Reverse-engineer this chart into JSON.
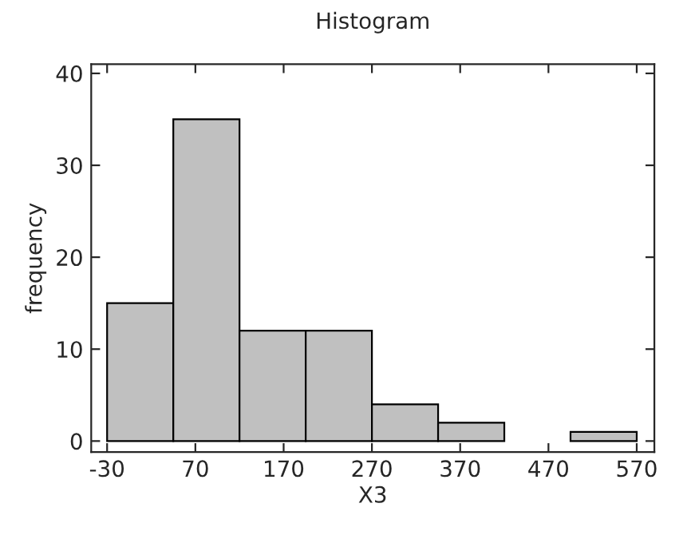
{
  "chart_data": {
    "type": "histogram",
    "title": "Histogram",
    "xlabel": "X3",
    "ylabel": "frequency",
    "bins": [
      -30,
      45,
      120,
      195,
      270,
      345,
      420,
      495,
      570
    ],
    "values": [
      15,
      35,
      12,
      12,
      4,
      2,
      0,
      1
    ],
    "color": "#c0c0c0",
    "xlim": [
      -48,
      590
    ],
    "xticks": [
      -30,
      70,
      170,
      270,
      370,
      470,
      570
    ],
    "ylim": [
      -1.2,
      41
    ],
    "yticks": [
      0,
      10,
      20,
      30,
      40
    ],
    "grid": false
  }
}
